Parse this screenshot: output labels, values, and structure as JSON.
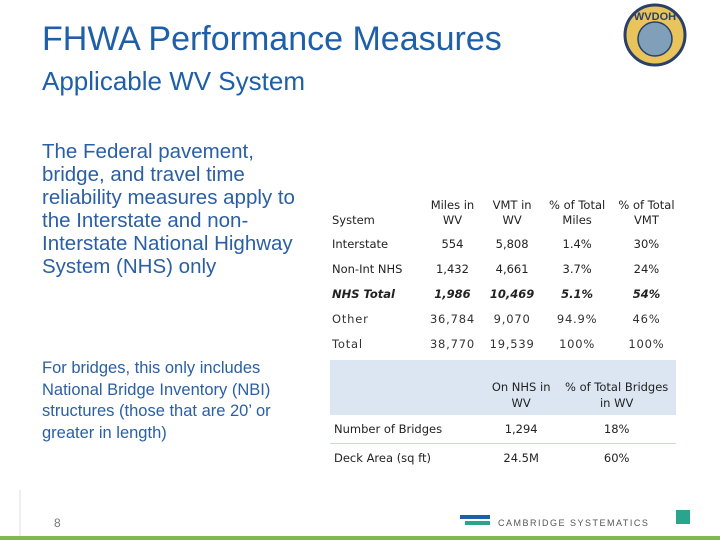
{
  "header": {
    "title": "FHWA Performance Measures",
    "subtitle": "Applicable WV System",
    "logo": "WVDOH"
  },
  "body": {
    "paragraphs": [
      "The Federal pavement, bridge, and travel time reliability measures apply to the Interstate and non-Interstate National Highway System (NHS) only",
      "For bridges, this only includes National Bridge Inventory (NBI) structures (those that are 20’ or greater in length)"
    ]
  },
  "table": {
    "columns": [
      "System",
      "Miles in WV",
      "VMT in WV",
      "% of Total Miles",
      "% of Total VMT"
    ],
    "rows": [
      [
        "Interstate",
        "554",
        "5,808",
        "1.4%",
        "30%"
      ],
      [
        "Non-Int NHS",
        "1,432",
        "4,661",
        "3.7%",
        "24%"
      ],
      [
        "NHS Total",
        "1,986",
        "10,469",
        "5.1%",
        "54%"
      ],
      [
        "Other",
        "36,784",
        "9,070",
        "94.9%",
        "46%"
      ],
      [
        "Total",
        "38,770",
        "19,539",
        "100%",
        "100%"
      ]
    ]
  },
  "bridge_table": {
    "columns": [
      "On NHS in WV",
      "% of Total Bridges in WV"
    ],
    "rows": [
      [
        "Number of Bridges",
        "1,294",
        "18%"
      ],
      [
        "Deck Area (sq ft)",
        "24.5M",
        "60%"
      ]
    ]
  },
  "footer": {
    "page": "8",
    "brand": "CAMBRIDGE SYSTEMATICS"
  }
}
